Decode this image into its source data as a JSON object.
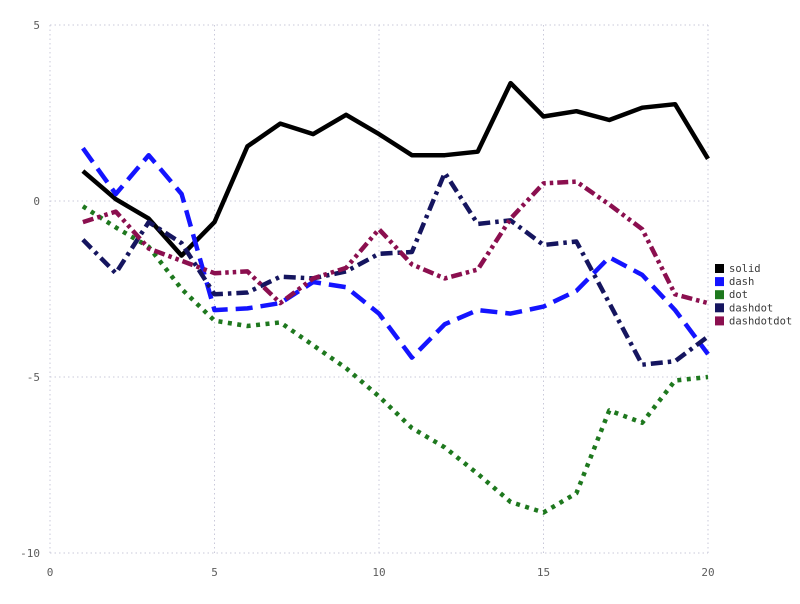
{
  "chart_data": {
    "type": "line",
    "title": "",
    "xlabel": "",
    "ylabel": "",
    "xlim": [
      0,
      20
    ],
    "ylim": [
      -10,
      5
    ],
    "xticks": [
      0,
      5,
      10,
      15,
      20
    ],
    "yticks": [
      -10,
      -5,
      0,
      5
    ],
    "grid": "dotted",
    "grid_color": "#c9c9da",
    "legend_position": "right-outside",
    "x": [
      1,
      2,
      3,
      4,
      5,
      6,
      7,
      8,
      9,
      10,
      11,
      12,
      13,
      14,
      15,
      16,
      17,
      18,
      19,
      20
    ],
    "series": [
      {
        "name": "solid",
        "color": "#000000",
        "dash_style": "solid",
        "values": [
          0.85,
          0.05,
          -0.5,
          -1.55,
          -0.6,
          1.55,
          2.2,
          1.9,
          2.45,
          1.9,
          1.3,
          1.3,
          1.4,
          3.35,
          2.4,
          2.55,
          2.3,
          2.65,
          2.75,
          1.2
        ]
      },
      {
        "name": "dash",
        "color": "#1414ff",
        "dash_style": "dash",
        "values": [
          1.5,
          0.2,
          1.3,
          0.2,
          -3.1,
          -3.05,
          -2.9,
          -2.3,
          -2.45,
          -3.2,
          -4.45,
          -3.5,
          -3.1,
          -3.2,
          -3.0,
          -2.55,
          -1.6,
          -2.1,
          -3.1,
          -4.35
        ]
      },
      {
        "name": "dot",
        "color": "#1e781e",
        "dash_style": "dot",
        "values": [
          -0.15,
          -0.75,
          -1.3,
          -2.5,
          -3.4,
          -3.55,
          -3.45,
          -4.1,
          -4.75,
          -5.55,
          -6.45,
          -7.0,
          -7.75,
          -8.55,
          -8.85,
          -8.3,
          -5.95,
          -6.3,
          -5.1,
          -5.0
        ]
      },
      {
        "name": "dashdot",
        "color": "#15155f",
        "dash_style": "dashdot",
        "values": [
          -1.1,
          -2.05,
          -0.6,
          -1.2,
          -2.65,
          -2.6,
          -2.15,
          -2.2,
          -2.0,
          -1.5,
          -1.45,
          0.8,
          -0.65,
          -0.55,
          -1.25,
          -1.15,
          -2.9,
          -4.65,
          -4.55,
          -3.85
        ]
      },
      {
        "name": "dashdotdot",
        "color": "#8b0f4f",
        "dash_style": "dashdotdot",
        "values": [
          -0.6,
          -0.3,
          -1.35,
          -1.7,
          -2.05,
          -2.0,
          -2.9,
          -2.2,
          -1.9,
          -0.8,
          -1.8,
          -2.2,
          -1.95,
          -0.5,
          0.5,
          0.55,
          -0.1,
          -0.8,
          -2.65,
          -2.9
        ]
      }
    ],
    "legend": [
      "solid",
      "dash",
      "dot",
      "dashdot",
      "dashdotdot"
    ]
  }
}
